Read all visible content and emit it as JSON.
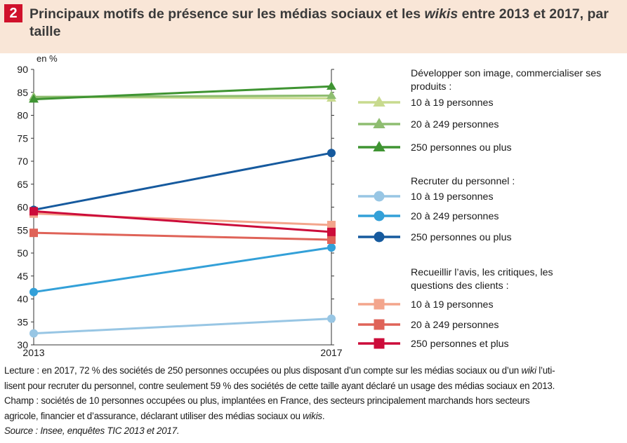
{
  "figure": {
    "number": "2",
    "title_pre": "Principaux motifs de présence sur les médias sociaux et les ",
    "title_em": "wikis",
    "title_post": " entre 2013 et 2017, par taille"
  },
  "chart_data": {
    "type": "line",
    "title": "Principaux motifs de présence sur les médias sociaux et les wikis entre 2013 et 2017, par taille",
    "y_unit_label": "en %",
    "x": [
      "2013",
      "2017"
    ],
    "xlabel": "",
    "ylabel": "",
    "ylim": [
      30,
      90
    ],
    "yticks": [
      30,
      35,
      40,
      45,
      50,
      55,
      60,
      65,
      70,
      75,
      80,
      85,
      90
    ],
    "grid": false,
    "legend_position": "right",
    "groups": [
      {
        "heading": "Développer son image, commercialiser ses produits :",
        "series": [
          {
            "name": "10 à 19 personnes",
            "values": [
              84,
              83.7
            ],
            "color": "#c8da8e",
            "marker": "triangle"
          },
          {
            "name": "20 à 249 personnes",
            "values": [
              84,
              84.3
            ],
            "color": "#8ebd70",
            "marker": "triangle"
          },
          {
            "name": "250 personnes ou plus",
            "values": [
              83.5,
              86.3
            ],
            "color": "#3f9432",
            "marker": "triangle"
          }
        ]
      },
      {
        "heading": "Recruter du personnel :",
        "series": [
          {
            "name": "10 à 19 personnes",
            "values": [
              32.5,
              35.7
            ],
            "color": "#98c6e4",
            "marker": "circle"
          },
          {
            "name": "20 à 249 personnes",
            "values": [
              41.5,
              51.2
            ],
            "color": "#33a0d8",
            "marker": "circle"
          },
          {
            "name": "250 personnes ou plus",
            "values": [
              59.4,
              71.8
            ],
            "color": "#165a9e",
            "marker": "circle"
          }
        ]
      },
      {
        "heading": "Recueillir l’avis, les critiques, les questions des clients :",
        "series": [
          {
            "name": "10 à 19 personnes",
            "values": [
              58.6,
              56.1
            ],
            "color": "#f3a58c",
            "marker": "square"
          },
          {
            "name": "20 à 249 personnes",
            "values": [
              54.4,
              52.9
            ],
            "color": "#df6358",
            "marker": "square"
          },
          {
            "name": "250 personnes et plus",
            "values": [
              59.1,
              54.6
            ],
            "color": "#cc0c3a",
            "marker": "square"
          }
        ]
      }
    ]
  },
  "footer": {
    "lecture_1": "Lecture : en 2017, 72 % des sociétés de 250 personnes occupées ou plus disposant d’un compte sur les médias sociaux ou d’un ",
    "lecture_em": "wiki",
    "lecture_2": " l’uti-",
    "lecture_line2": "lisent pour recruter du personnel, contre seulement 59 % des sociétés de cette taille ayant déclaré un usage des médias sociaux en 2013.",
    "champ_line1": "Champ : sociétés de 10 personnes occupées ou plus, implantées en France, des secteurs principalement marchands hors secteurs",
    "champ_line2_pre": "agricole, financier et d’assurance, déclarant utiliser des médias sociaux ou ",
    "champ_line2_em": "wikis",
    "champ_line2_post": ".",
    "source": "Source : Insee, enquêtes TIC 2013 et 2017."
  }
}
